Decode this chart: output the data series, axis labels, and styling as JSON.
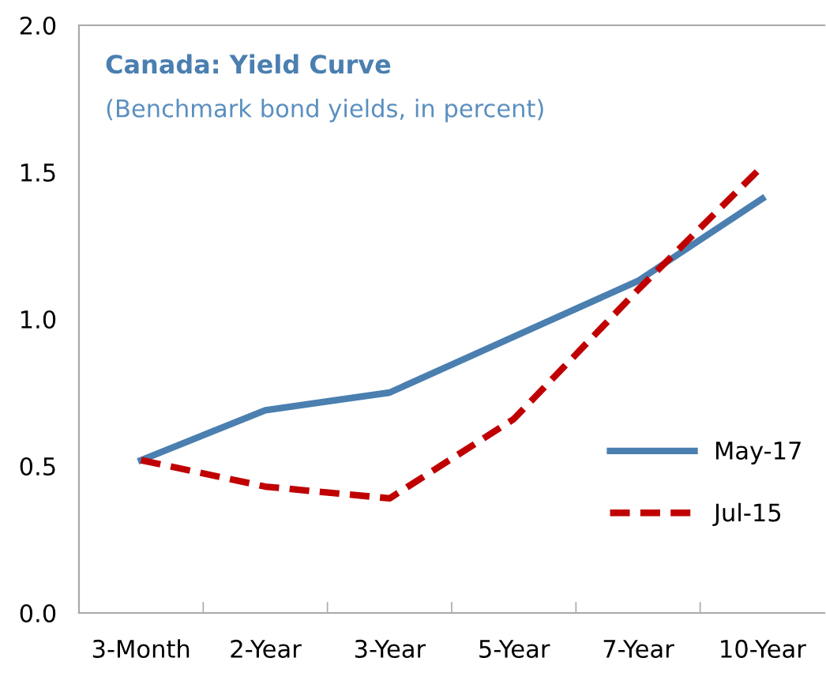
{
  "chart_data": {
    "type": "line",
    "title": "Canada: Yield Curve",
    "subtitle": "(Benchmark bond yields, in percent)",
    "categories": [
      "3-Month",
      "2-Year",
      "3-Year",
      "5-Year",
      "7-Year",
      "10-Year"
    ],
    "series": [
      {
        "name": "May-17",
        "color": "#4a7fb0",
        "line_style": "solid",
        "values": [
          0.52,
          0.69,
          0.75,
          0.94,
          1.13,
          1.41
        ]
      },
      {
        "name": "Jul-15",
        "color": "#c00000",
        "line_style": "dashed",
        "values": [
          0.52,
          0.43,
          0.39,
          0.66,
          1.1,
          1.52
        ]
      }
    ],
    "ylim": [
      0,
      2.0
    ],
    "yticks": [
      {
        "value": 0,
        "label": "0.0"
      },
      0.5,
      {
        "value": 1,
        "label": "1.0"
      },
      1.5,
      {
        "value": 2,
        "label": "2.0"
      }
    ],
    "grid": false,
    "legend": "right",
    "marker": "none"
  }
}
